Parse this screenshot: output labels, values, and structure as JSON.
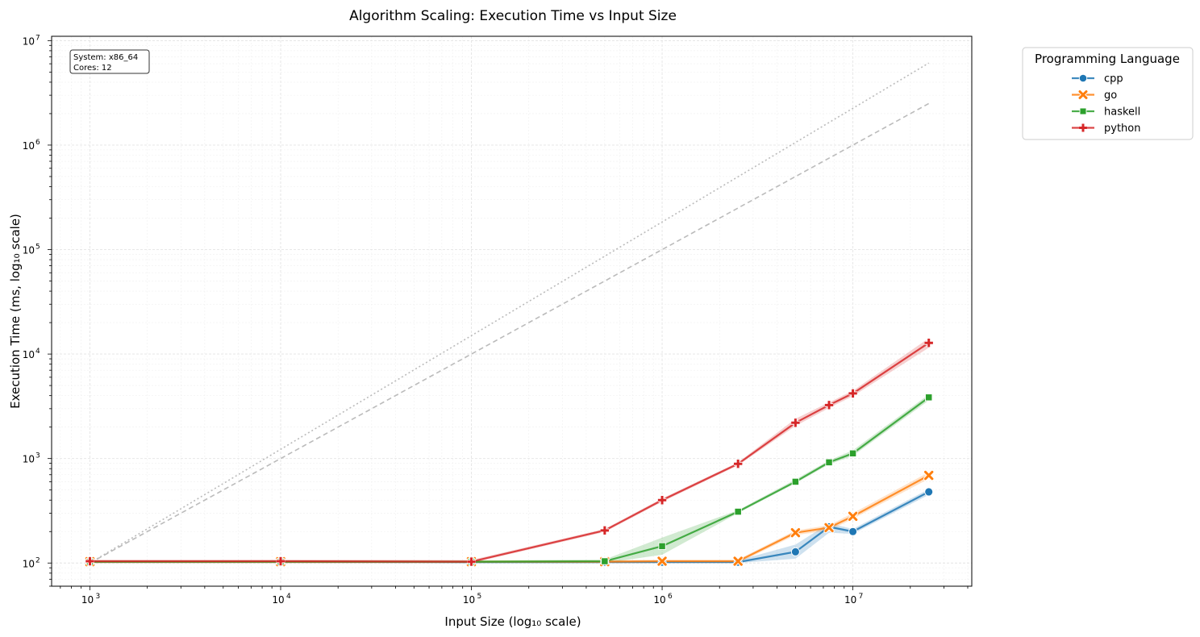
{
  "chart_data": {
    "type": "line",
    "title": "Algorithm Scaling: Execution Time vs Input Size",
    "xlabel": "Input Size (log₁₀ scale)",
    "ylabel": "Execution Time (ms, log₁₀ scale)",
    "xscale": "log",
    "yscale": "log",
    "xlim": [
      630,
      42000000
    ],
    "ylim": [
      60,
      11000000
    ],
    "x_ticks": [
      {
        "value": 1000,
        "base": "10",
        "exp": "3"
      },
      {
        "value": 10000,
        "base": "10",
        "exp": "4"
      },
      {
        "value": 100000,
        "base": "10",
        "exp": "5"
      },
      {
        "value": 1000000,
        "base": "10",
        "exp": "6"
      },
      {
        "value": 10000000,
        "base": "10",
        "exp": "7"
      }
    ],
    "y_ticks": [
      {
        "value": 100,
        "base": "10",
        "exp": "2"
      },
      {
        "value": 1000,
        "base": "10",
        "exp": "3"
      },
      {
        "value": 10000,
        "base": "10",
        "exp": "4"
      },
      {
        "value": 100000,
        "base": "10",
        "exp": "5"
      },
      {
        "value": 1000000,
        "base": "10",
        "exp": "6"
      },
      {
        "value": 10000000,
        "base": "10",
        "exp": "7"
      }
    ],
    "grid": true,
    "legend": {
      "title": "Programming Language",
      "placement": "outside-top-right"
    },
    "annotation": {
      "lines": [
        "System: x86_64",
        "Cores: 12"
      ],
      "placement": "top-left"
    },
    "series": [
      {
        "name": "cpp",
        "color": "#1f77b4",
        "marker": "circle",
        "x": [
          1000,
          10000,
          100000,
          500000,
          1000000,
          2500000,
          5000000,
          7500000,
          10000000,
          25000000
        ],
        "values": [
          103,
          103,
          102,
          102,
          102,
          102,
          128,
          222,
          200,
          480
        ],
        "lower": [
          100,
          100,
          100,
          100,
          100,
          100,
          110,
          195,
          190,
          450
        ],
        "upper": [
          106,
          106,
          105,
          105,
          106,
          106,
          150,
          240,
          212,
          510
        ]
      },
      {
        "name": "go",
        "color": "#ff7f0e",
        "marker": "x",
        "x": [
          1000,
          10000,
          100000,
          500000,
          1000000,
          2500000,
          5000000,
          7500000,
          10000000,
          25000000
        ],
        "values": [
          103,
          103,
          103,
          103,
          104,
          104,
          195,
          218,
          280,
          690
        ],
        "lower": [
          100,
          100,
          100,
          100,
          100,
          100,
          185,
          205,
          265,
          640
        ],
        "upper": [
          106,
          106,
          106,
          106,
          108,
          108,
          205,
          230,
          300,
          740
        ]
      },
      {
        "name": "haskell",
        "color": "#2ca02c",
        "marker": "square",
        "x": [
          1000,
          10000,
          100000,
          500000,
          1000000,
          2500000,
          5000000,
          7500000,
          10000000,
          25000000
        ],
        "values": [
          103,
          103,
          103,
          104,
          145,
          310,
          600,
          920,
          1120,
          3850
        ],
        "lower": [
          100,
          100,
          100,
          100,
          120,
          300,
          580,
          880,
          1060,
          3600
        ],
        "upper": [
          106,
          106,
          106,
          108,
          175,
          320,
          630,
          960,
          1200,
          4100
        ]
      },
      {
        "name": "python",
        "color": "#d62728",
        "marker": "plus",
        "x": [
          1000,
          10000,
          100000,
          500000,
          1000000,
          2500000,
          5000000,
          7500000,
          10000000,
          25000000
        ],
        "values": [
          104,
          104,
          103,
          205,
          400,
          890,
          2200,
          3250,
          4200,
          12800
        ],
        "lower": [
          100,
          100,
          100,
          198,
          385,
          860,
          2050,
          3050,
          3950,
          11500
        ],
        "upper": [
          108,
          108,
          107,
          212,
          415,
          920,
          2400,
          3450,
          4450,
          14200
        ]
      }
    ],
    "reference_lines": [
      {
        "style": "dotted",
        "color": "#bbbbbb",
        "x": [
          1000,
          25000000
        ],
        "values": [
          100,
          6100000
        ]
      },
      {
        "style": "dashed",
        "color": "#bbbbbb",
        "x": [
          1000,
          25000000
        ],
        "values": [
          100,
          2500000
        ]
      }
    ]
  }
}
